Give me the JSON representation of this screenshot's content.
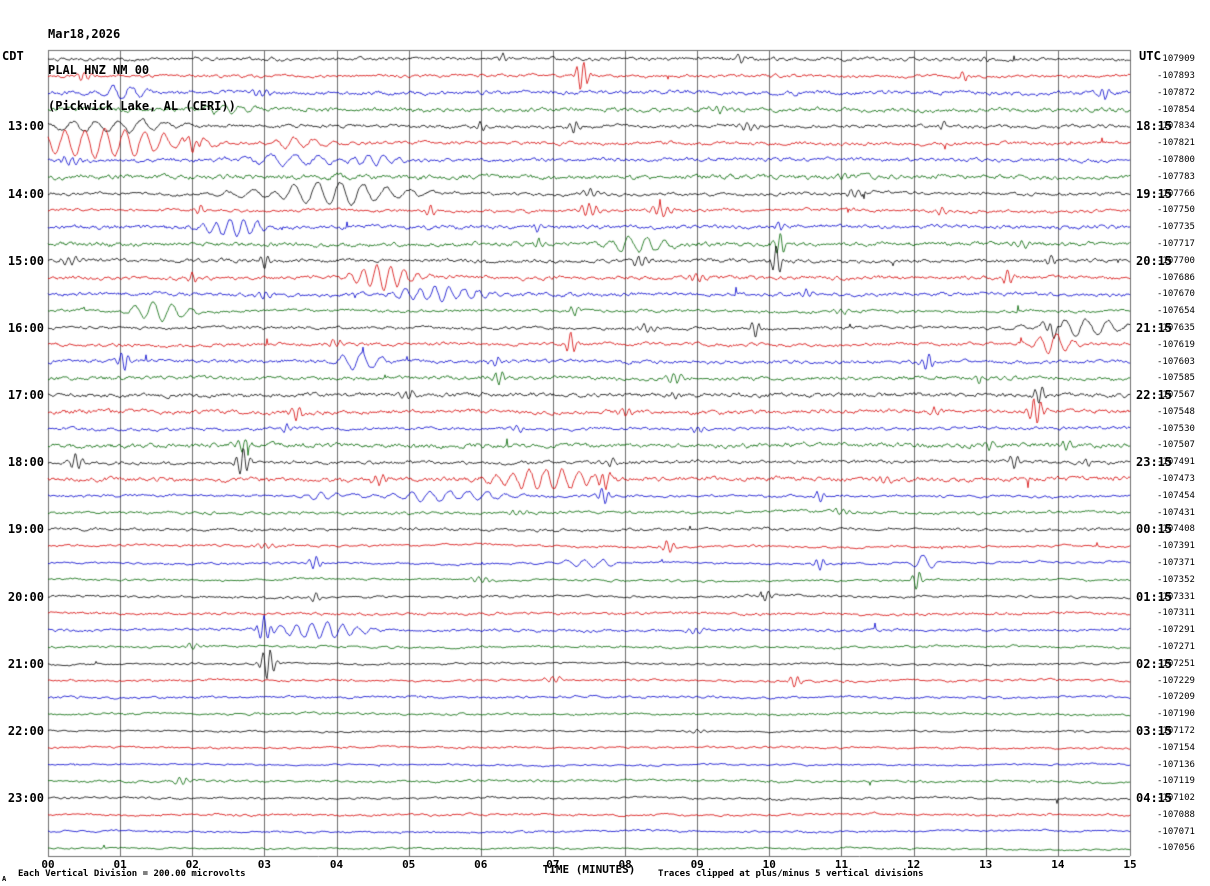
{
  "header": {
    "date": "Mar18,2026",
    "station": "PLAL HNZ NM 00",
    "location": "(Pickwick Lake, AL (CERI))"
  },
  "footer": {
    "scale_note": "Each Vertical Division =  200.00 microvolts",
    "clip_note": "Traces clipped at plus/minus 5 vertical divisions",
    "corner_mark": "A"
  },
  "chart_data": {
    "type": "line",
    "subtype": "helicorder-seismogram",
    "station": "PLAL HNZ NM 00",
    "station_location": "Pickwick Lake, AL (CERI)",
    "date": "Mar18,2026",
    "timezone_left": "CDT",
    "timezone_right": "UTC",
    "xlabel": "TIME (MINUTES)",
    "x_range_minutes": [
      0,
      15
    ],
    "x_tick_labels": [
      "00",
      "01",
      "02",
      "03",
      "04",
      "05",
      "06",
      "07",
      "08",
      "09",
      "10",
      "11",
      "12",
      "13",
      "14",
      "15"
    ],
    "rows": 48,
    "minutes_per_row": 15,
    "first_row_start_cdt": "12:00",
    "clip_divisions": 5,
    "microvolts_per_division": 200.0,
    "trace_color_cycle": [
      "#000000",
      "#d40000",
      "#0000cc",
      "#006600"
    ],
    "grid_color": "#6e6e6e",
    "left_hour_labels": [
      "13:00",
      "14:00",
      "15:00",
      "16:00",
      "17:00",
      "18:00",
      "19:00",
      "20:00",
      "21:00",
      "22:00",
      "23:00"
    ],
    "right_utc_labels": [
      "18:15",
      "19:15",
      "20:15",
      "21:15",
      "22:15",
      "23:15",
      "00:15",
      "01:15",
      "02:15",
      "03:15",
      "04:15"
    ],
    "right_trace_values": [
      -107909,
      -107893,
      -107872,
      -107854,
      -107834,
      -107821,
      -107800,
      -107783,
      -107766,
      -107750,
      -107735,
      -107717,
      -107700,
      -107686,
      -107670,
      -107654,
      -107635,
      -107619,
      -107603,
      -107585,
      -107567,
      -107548,
      -107530,
      -107507,
      -107491,
      -107473,
      -107454,
      -107431,
      -107408,
      -107391,
      -107371,
      -107352,
      -107331,
      -107311,
      -107291,
      -107271,
      -107251,
      -107229,
      -107209,
      -107190,
      -107172,
      -107154,
      -107136,
      -107119,
      -107102,
      -107088,
      -107071,
      -107056
    ],
    "events_key": {
      "0": "row index (0=top)",
      "1": "minute position",
      "2": "amplitude px",
      "3": "width minutes"
    },
    "events": [
      [
        0,
        6.3,
        5,
        0.05
      ],
      [
        0,
        9.6,
        4,
        0.05
      ],
      [
        0,
        13.0,
        4,
        0.05
      ],
      [
        1,
        7.4,
        16,
        0.06
      ],
      [
        1,
        12.7,
        5,
        0.05
      ],
      [
        1,
        0.5,
        4,
        0.1
      ],
      [
        2,
        1.05,
        7,
        0.25
      ],
      [
        2,
        14.65,
        6,
        0.05
      ],
      [
        2,
        2.9,
        4,
        0.1
      ],
      [
        3,
        2.4,
        4,
        0.3
      ],
      [
        3,
        9.3,
        3,
        0.1
      ],
      [
        4,
        0.9,
        6,
        0.7
      ],
      [
        4,
        6.0,
        5,
        0.05
      ],
      [
        4,
        7.3,
        6,
        0.05
      ],
      [
        4,
        9.7,
        4,
        0.1
      ],
      [
        4,
        12.4,
        4,
        0.05
      ],
      [
        5,
        0.75,
        14,
        0.8
      ],
      [
        5,
        3.4,
        5,
        0.3
      ],
      [
        5,
        2.0,
        6,
        0.1
      ],
      [
        6,
        3.3,
        6,
        0.45
      ],
      [
        6,
        4.5,
        5,
        0.25
      ],
      [
        6,
        0.3,
        4,
        0.1
      ],
      [
        7,
        4.1,
        4,
        0.2
      ],
      [
        7,
        11.0,
        3,
        0.1
      ],
      [
        8,
        3.9,
        12,
        0.7
      ],
      [
        8,
        2.95,
        7,
        0.25
      ],
      [
        8,
        7.5,
        4,
        0.1
      ],
      [
        8,
        11.2,
        4,
        0.1
      ],
      [
        9,
        2.1,
        5,
        0.05
      ],
      [
        9,
        5.3,
        6,
        0.05
      ],
      [
        9,
        7.5,
        6,
        0.1
      ],
      [
        9,
        8.5,
        6,
        0.1
      ],
      [
        9,
        12.4,
        4,
        0.05
      ],
      [
        10,
        2.6,
        8,
        0.35
      ],
      [
        10,
        6.8,
        4,
        0.05
      ],
      [
        10,
        10.15,
        5,
        0.05
      ],
      [
        11,
        8.2,
        8,
        0.3
      ],
      [
        11,
        10.15,
        13,
        0.05
      ],
      [
        11,
        6.8,
        5,
        0.05
      ],
      [
        11,
        13.5,
        4,
        0.1
      ],
      [
        12,
        3.0,
        8,
        0.05
      ],
      [
        12,
        8.2,
        6,
        0.08
      ],
      [
        12,
        10.1,
        15,
        0.05
      ],
      [
        12,
        13.9,
        5,
        0.05
      ],
      [
        12,
        0.3,
        5,
        0.1
      ],
      [
        13,
        4.65,
        12,
        0.3
      ],
      [
        13,
        13.3,
        8,
        0.06
      ],
      [
        13,
        2.0,
        5,
        0.05
      ],
      [
        13,
        9.0,
        4,
        0.1
      ],
      [
        14,
        5.4,
        7,
        0.45
      ],
      [
        14,
        10.5,
        5,
        0.05
      ],
      [
        14,
        3.0,
        4,
        0.1
      ],
      [
        15,
        1.55,
        9,
        0.3
      ],
      [
        15,
        7.3,
        5,
        0.05
      ],
      [
        15,
        11.0,
        3,
        0.1
      ],
      [
        16,
        9.8,
        9,
        0.05
      ],
      [
        16,
        14.35,
        8,
        0.45
      ],
      [
        16,
        13.9,
        6,
        0.08
      ],
      [
        16,
        8.3,
        4,
        0.1
      ],
      [
        17,
        7.25,
        12,
        0.05
      ],
      [
        17,
        13.95,
        10,
        0.2
      ],
      [
        17,
        4.0,
        4,
        0.1
      ],
      [
        18,
        1.05,
        10,
        0.06
      ],
      [
        18,
        4.3,
        9,
        0.22
      ],
      [
        18,
        12.2,
        8,
        0.06
      ],
      [
        18,
        6.2,
        5,
        0.05
      ],
      [
        19,
        6.25,
        8,
        0.06
      ],
      [
        19,
        8.7,
        6,
        0.08
      ],
      [
        19,
        12.9,
        4,
        0.05
      ],
      [
        20,
        13.75,
        8,
        0.06
      ],
      [
        20,
        8.7,
        4,
        0.05
      ],
      [
        20,
        5.0,
        4,
        0.1
      ],
      [
        21,
        3.45,
        7,
        0.06
      ],
      [
        21,
        13.7,
        14,
        0.07
      ],
      [
        21,
        12.3,
        5,
        0.05
      ],
      [
        21,
        8.0,
        4,
        0.08
      ],
      [
        22,
        3.3,
        5,
        0.05
      ],
      [
        22,
        9.0,
        4,
        0.06
      ],
      [
        22,
        6.5,
        3,
        0.1
      ],
      [
        23,
        2.7,
        7,
        0.06
      ],
      [
        23,
        13.05,
        6,
        0.06
      ],
      [
        23,
        14.1,
        5,
        0.06
      ],
      [
        24,
        0.4,
        8,
        0.06
      ],
      [
        24,
        2.7,
        16,
        0.06
      ],
      [
        24,
        13.4,
        7,
        0.06
      ],
      [
        24,
        14.4,
        5,
        0.05
      ],
      [
        24,
        7.8,
        4,
        0.08
      ],
      [
        25,
        6.9,
        10,
        0.55
      ],
      [
        25,
        7.7,
        8,
        0.07
      ],
      [
        25,
        4.6,
        5,
        0.1
      ],
      [
        25,
        11.6,
        4,
        0.08
      ],
      [
        26,
        5.5,
        5,
        0.6
      ],
      [
        26,
        7.7,
        9,
        0.06
      ],
      [
        26,
        10.7,
        5,
        0.06
      ],
      [
        26,
        3.8,
        4,
        0.2
      ],
      [
        27,
        6.5,
        3,
        0.1
      ],
      [
        27,
        11.0,
        3,
        0.1
      ],
      [
        29,
        8.6,
        7,
        0.06
      ],
      [
        29,
        3.0,
        3,
        0.1
      ],
      [
        30,
        3.7,
        7,
        0.06
      ],
      [
        30,
        7.5,
        4,
        0.3
      ],
      [
        30,
        10.7,
        6,
        0.06
      ],
      [
        30,
        12.15,
        8,
        0.12
      ],
      [
        31,
        12.05,
        10,
        0.05
      ],
      [
        31,
        6.0,
        3,
        0.1
      ],
      [
        32,
        9.95,
        6,
        0.06
      ],
      [
        32,
        3.7,
        4,
        0.06
      ],
      [
        34,
        3.0,
        12,
        0.07
      ],
      [
        34,
        3.75,
        8,
        0.45
      ],
      [
        34,
        9.0,
        3,
        0.1
      ],
      [
        35,
        2.0,
        3,
        0.1
      ],
      [
        36,
        3.05,
        16,
        0.07
      ],
      [
        37,
        10.35,
        6,
        0.06
      ],
      [
        37,
        7.0,
        3,
        0.1
      ],
      [
        40,
        9.0,
        2,
        0.1
      ],
      [
        43,
        1.85,
        4,
        0.08
      ]
    ]
  }
}
